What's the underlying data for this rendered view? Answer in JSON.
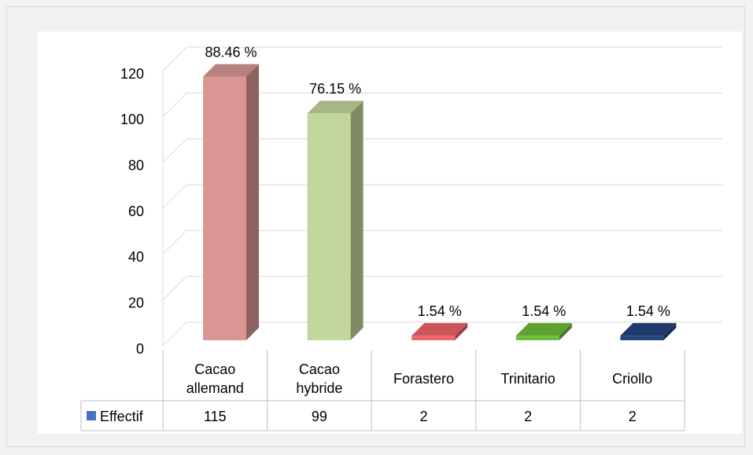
{
  "chart_data": {
    "type": "bar3d",
    "categories": [
      "Cacao allemand",
      "Cacao hybride",
      "Forastero",
      "Trinitario",
      "Criollo"
    ],
    "series": [
      {
        "name": "Effectif",
        "color": "#4472c4",
        "values": [
          115,
          99,
          2,
          2,
          2
        ]
      }
    ],
    "bar_colors": [
      "#d99694",
      "#c3d69b",
      "#f0646b",
      "#6cbf3a",
      "#23457f"
    ],
    "percent_labels": [
      "88.46 %",
      "76.15 %",
      "1.54 %",
      "1.54 %",
      "1.54 %"
    ],
    "ylim": [
      0,
      120
    ],
    "yticks": [
      0,
      20,
      40,
      60,
      80,
      100,
      120
    ],
    "grid": true,
    "data_table": true
  }
}
